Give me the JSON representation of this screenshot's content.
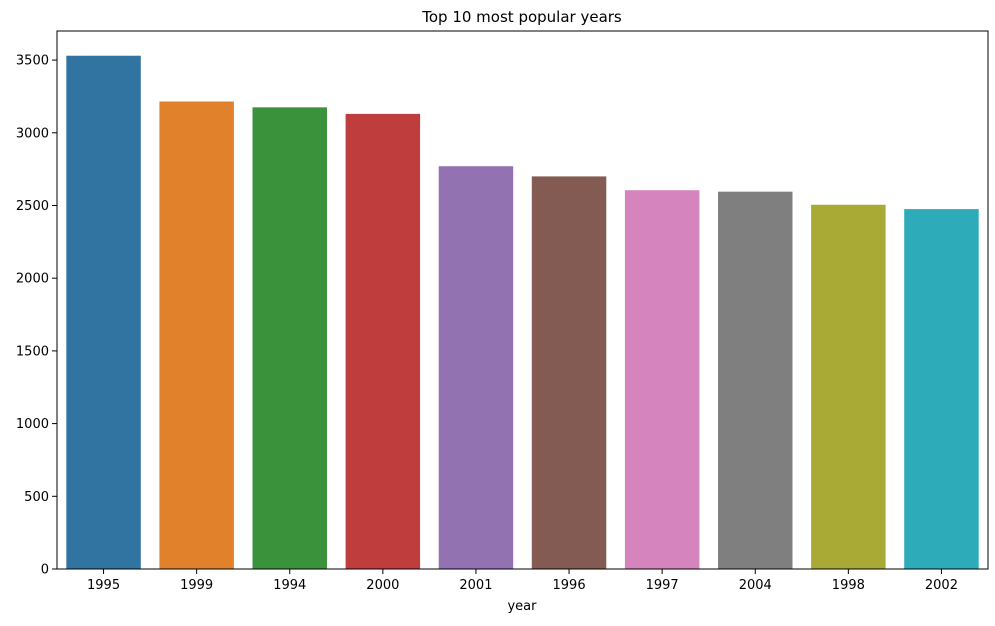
{
  "chart_data": {
    "type": "bar",
    "title": "Top 10 most popular years",
    "xlabel": "year",
    "ylabel": "",
    "categories": [
      "1995",
      "1999",
      "1994",
      "2000",
      "2001",
      "1996",
      "1997",
      "2004",
      "1998",
      "2002"
    ],
    "values": [
      3530,
      3215,
      3175,
      3130,
      2770,
      2700,
      2605,
      2595,
      2505,
      2475
    ],
    "colors": [
      "#3274a1",
      "#e1812c",
      "#3a923a",
      "#c03d3e",
      "#9372b2",
      "#845b53",
      "#d684bd",
      "#7f7f7f",
      "#a9aa35",
      "#2eabb8"
    ],
    "ylim": [
      0,
      3700
    ],
    "yticks": [
      0,
      500,
      1000,
      1500,
      2000,
      2500,
      3000,
      3500
    ],
    "grid": false,
    "legend": "none"
  }
}
